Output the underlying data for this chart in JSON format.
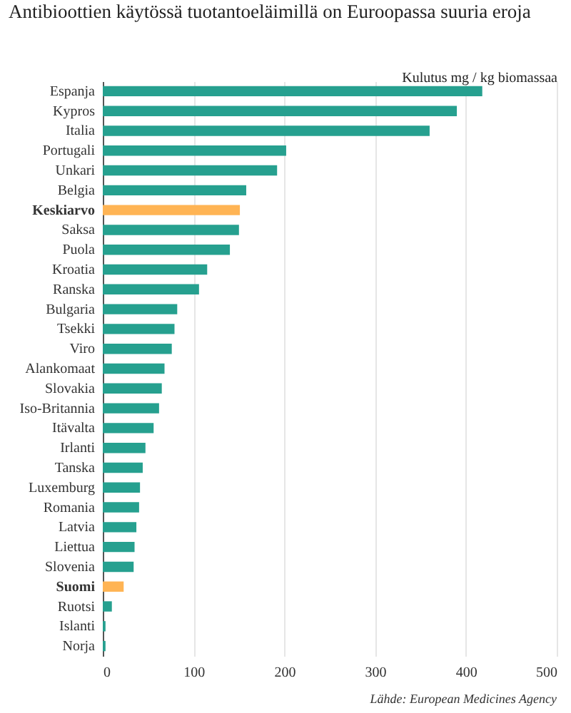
{
  "chart_data": {
    "type": "bar",
    "orientation": "horizontal",
    "title": "Antibioottien käytössä tuotantoeläimillä on Euroopassa suuria eroja",
    "xlabel": "Kulutus mg / kg biomassaa",
    "categories": [
      "Espanja",
      "Kypros",
      "Italia",
      "Portugali",
      "Unkari",
      "Belgia",
      "Keskiarvo",
      "Saksa",
      "Puola",
      "Kroatia",
      "Ranska",
      "Bulgaria",
      "Tsekki",
      "Viro",
      "Alankomaat",
      "Slovakia",
      "Iso-Britannia",
      "Itävalta",
      "Irlanti",
      "Tanska",
      "Luxemburg",
      "Romania",
      "Latvia",
      "Liettua",
      "Slovenia",
      "Suomi",
      "Ruotsi",
      "Islanti",
      "Norja"
    ],
    "values": [
      418,
      390,
      360,
      202,
      192,
      158,
      151,
      150,
      140,
      115,
      106,
      82,
      79,
      76,
      68,
      65,
      62,
      56,
      47,
      44,
      41,
      40,
      37,
      35,
      34,
      23,
      10,
      3,
      3
    ],
    "colors": [
      "#26a08f",
      "#26a08f",
      "#26a08f",
      "#26a08f",
      "#26a08f",
      "#26a08f",
      "#ffb454",
      "#26a08f",
      "#26a08f",
      "#26a08f",
      "#26a08f",
      "#26a08f",
      "#26a08f",
      "#26a08f",
      "#26a08f",
      "#26a08f",
      "#26a08f",
      "#26a08f",
      "#26a08f",
      "#26a08f",
      "#26a08f",
      "#26a08f",
      "#26a08f",
      "#26a08f",
      "#26a08f",
      "#ffb454",
      "#26a08f",
      "#26a08f",
      "#26a08f"
    ],
    "xlim": [
      0,
      500
    ],
    "xticks": [
      0,
      100,
      200,
      300,
      400,
      500
    ],
    "grid": "x",
    "annotations": [
      "Lähde: European Medicines Agency"
    ]
  }
}
